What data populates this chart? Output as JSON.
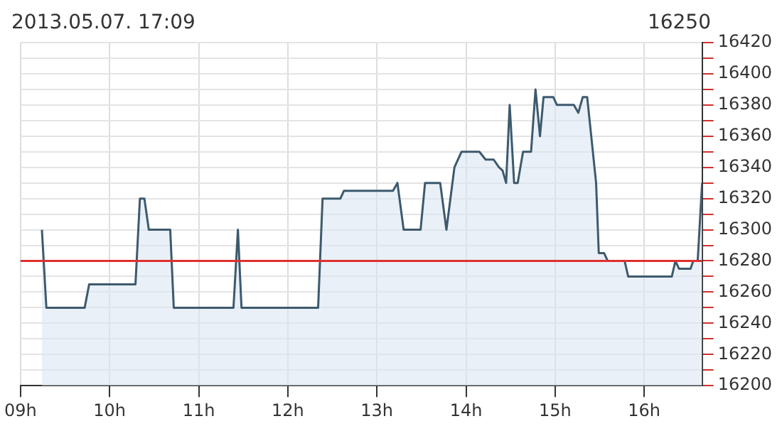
{
  "chart_data": {
    "type": "area",
    "title": "2013.05.07. 17:09",
    "subtitle": "16250",
    "x": [
      9.24,
      9.29,
      9.72,
      9.77,
      10.29,
      10.34,
      10.39,
      10.44,
      10.68,
      10.72,
      11.39,
      11.44,
      11.48,
      12.34,
      12.39,
      12.59,
      12.63,
      13.18,
      13.23,
      13.3,
      13.49,
      13.54,
      13.71,
      13.78,
      13.87,
      13.95,
      14.15,
      14.22,
      14.31,
      14.37,
      14.41,
      14.45,
      14.49,
      14.54,
      14.58,
      14.64,
      14.73,
      14.78,
      14.83,
      14.87,
      14.98,
      15.02,
      15.21,
      15.26,
      15.31,
      15.36,
      15.46,
      15.49,
      15.55,
      15.59,
      15.78,
      15.82,
      16.31,
      16.35,
      16.39,
      16.52,
      16.55,
      16.6,
      16.65
    ],
    "series": [
      {
        "color": "#3d5a6e",
        "values": [
          16300,
          16250,
          16250,
          16265,
          16265,
          16320,
          16320,
          16300,
          16300,
          16250,
          16250,
          16300,
          16250,
          16250,
          16320,
          16320,
          16325,
          16325,
          16330,
          16300,
          16300,
          16330,
          16330,
          16300,
          16340,
          16350,
          16350,
          16345,
          16345,
          16340,
          16338,
          16330,
          16380,
          16330,
          16330,
          16350,
          16350,
          16390,
          16360,
          16385,
          16385,
          16380,
          16380,
          16375,
          16385,
          16385,
          16330,
          16285,
          16285,
          16280,
          16280,
          16270,
          16270,
          16280,
          16275,
          16275,
          16280,
          16280,
          16330
        ]
      }
    ],
    "xlim": [
      9,
      16.65
    ],
    "xticks": [
      {
        "value": 9,
        "label": "09h"
      },
      {
        "value": 10,
        "label": "10h"
      },
      {
        "value": 11,
        "label": "11h"
      },
      {
        "value": 12,
        "label": "12h"
      },
      {
        "value": 13,
        "label": "13h"
      },
      {
        "value": 14,
        "label": "14h"
      },
      {
        "value": 15,
        "label": "15h"
      },
      {
        "value": 16,
        "label": "16h"
      }
    ],
    "ylim": [
      16200,
      16420
    ],
    "yticks": [
      16200,
      {
        "value": 16210,
        "label": null
      },
      16220,
      {
        "value": 16230,
        "label": null
      },
      16240,
      {
        "value": 16250,
        "label": null
      },
      16260,
      {
        "value": 16270,
        "label": null
      },
      16280,
      {
        "value": 16290,
        "label": null
      },
      16300,
      {
        "value": 16310,
        "label": null
      },
      16320,
      {
        "value": 16330,
        "label": null
      },
      16340,
      {
        "value": 16350,
        "label": null
      },
      16360,
      {
        "value": 16370,
        "label": null
      },
      16380,
      {
        "value": 16390,
        "label": null
      },
      16400,
      {
        "value": 16410,
        "label": null
      },
      16420
    ],
    "ref_lines": [
      {
        "axis": "y",
        "value": 16280,
        "color": "#e03030"
      }
    ],
    "grid": true,
    "legend": false,
    "marker": "none",
    "line_style": "solid"
  }
}
